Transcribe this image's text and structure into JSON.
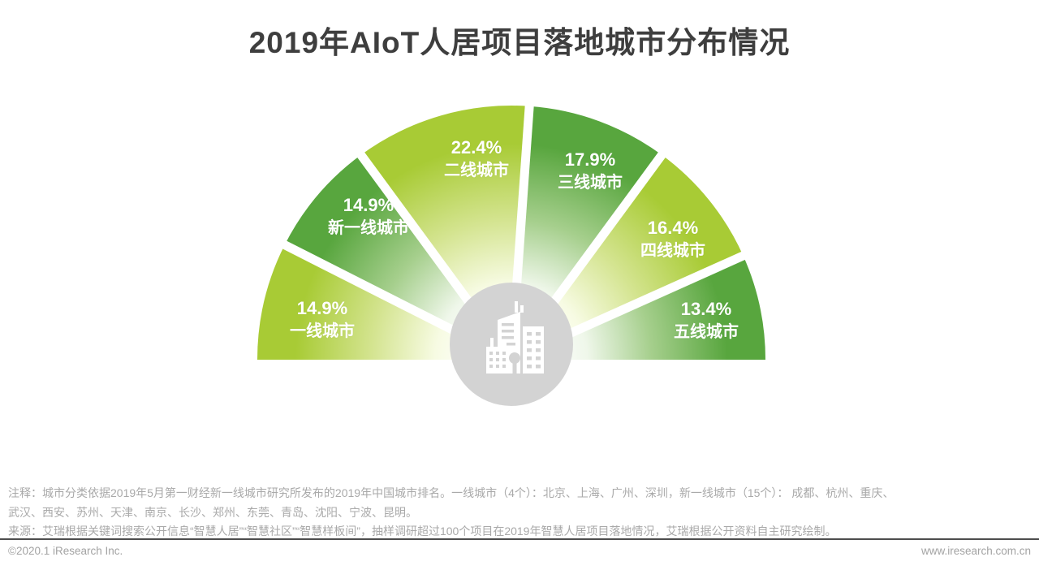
{
  "title": "2019年AIoT人居项目落地城市分布情况",
  "chart_data": {
    "type": "pie",
    "variant": "semicircle-fan",
    "title": "2019年AIoT人居项目落地城市分布情况",
    "unit": "percent",
    "legend_position": "labels-on-slices",
    "categories": [
      "一线城市",
      "新一线城市",
      "二线城市",
      "三线城市",
      "四线城市",
      "五线城市"
    ],
    "values": [
      14.9,
      14.9,
      22.4,
      17.9,
      16.4,
      13.4
    ],
    "segments": [
      {
        "name": "一线城市",
        "value": 14.9,
        "pct_label": "14.9%",
        "tone": "light"
      },
      {
        "name": "新一线城市",
        "value": 14.9,
        "pct_label": "14.9%",
        "tone": "dark"
      },
      {
        "name": "二线城市",
        "value": 22.4,
        "pct_label": "22.4%",
        "tone": "light"
      },
      {
        "name": "三线城市",
        "value": 17.9,
        "pct_label": "17.9%",
        "tone": "dark"
      },
      {
        "name": "四线城市",
        "value": 16.4,
        "pct_label": "16.4%",
        "tone": "light"
      },
      {
        "name": "五线城市",
        "value": 13.4,
        "pct_label": "13.4%",
        "tone": "dark"
      }
    ],
    "colors": {
      "light": "#a8cb35",
      "light_mid": "#d4e490",
      "light_pale": "#f7fbe3",
      "dark": "#58a63e",
      "dark_mid": "#a6cf8d",
      "dark_pale": "#eff7ea",
      "center_circle": "#d3d3d3",
      "label_text": "#ffffff"
    },
    "center_icon": "city-buildings-icon"
  },
  "footer": {
    "note_line1": "注释：城市分类依据2019年5月第一财经新一线城市研究所发布的2019年中国城市排名。一线城市（4个）：北京、上海、广州、深圳，新一线城市（15个）： 成都、杭州、重庆、",
    "note_line2": "武汉、西安、苏州、天津、南京、长沙、郑州、东莞、青岛、沈阳、宁波、昆明。",
    "source_line": "来源：艾瑞根据关键词搜索公开信息“智慧人居”“智慧社区”“智慧样板间”，抽样调研超过100个项目在2019年智慧人居项目落地情况，艾瑞根据公开资料自主研究绘制。",
    "copyright": "©2020.1 iResearch Inc.",
    "website": "www.iresearch.com.cn"
  }
}
